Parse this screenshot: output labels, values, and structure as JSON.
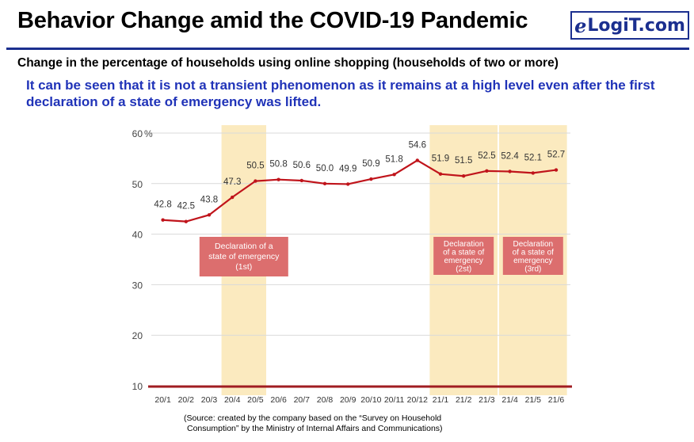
{
  "header": {
    "title": "Behavior Change amid the COVID-19 Pandemic",
    "logo_mark": "e",
    "logo_text": "LogiT.com"
  },
  "subtitle": "Change in the percentage of households using online shopping (households of two or more)",
  "note": "It can be seen that it is not a transient phenomenon as it remains at a high level even after the first declaration of a state of emergency was lifted.",
  "source": [
    "(Source: created by the company based on the “Survey on Household",
    "Consumption” by the Ministry of Internal Affairs and Communications)"
  ],
  "colors": {
    "line": "#c0141b",
    "band": "#fbeabf",
    "label_box": "#dc6e6e",
    "brand": "#1b2f8f",
    "note": "#2033b8"
  },
  "chart_data": {
    "type": "line",
    "categories": [
      "20/1",
      "20/2",
      "20/3",
      "20/4",
      "20/5",
      "20/6",
      "20/7",
      "20/8",
      "20/9",
      "20/10",
      "20/11",
      "20/12",
      "21/1",
      "21/2",
      "21/3",
      "21/4",
      "21/5",
      "21/6"
    ],
    "series": [
      {
        "values": [
          42.8,
          42.5,
          43.8,
          47.3,
          50.5,
          50.8,
          50.6,
          50.0,
          49.9,
          50.9,
          51.8,
          54.6,
          51.9,
          51.5,
          52.5,
          52.4,
          52.1,
          52.7
        ]
      }
    ],
    "data_labels": [
      "42.8",
      "42.5",
      "43.8",
      "47.3",
      "50.5",
      "50.8",
      "50.6",
      "50.0",
      "49.9",
      "50.9",
      "51.8",
      "54.6",
      "51.9",
      "51.5",
      "52.5",
      "52.4",
      "52.1",
      "52.7"
    ],
    "ylim": [
      10,
      60
    ],
    "yticks": [
      10,
      20,
      30,
      40,
      50,
      60
    ],
    "ytick_labels": [
      "10",
      "20",
      "30",
      "40",
      "50",
      "60"
    ],
    "yunit": "%",
    "grid": true,
    "bands": [
      {
        "from": "20/4",
        "to": "20/5",
        "label": [
          "Declaration of a",
          "state of emergency",
          "(1st)"
        ]
      },
      {
        "from": "21/1",
        "to": "21/3",
        "label": [
          "Declaration",
          "of a state of",
          "emergency",
          "(2st)"
        ]
      },
      {
        "from": "21/4",
        "to": "21/6",
        "label": [
          "Declaration",
          "of a state of",
          "emergency",
          "(3rd)"
        ]
      }
    ]
  }
}
